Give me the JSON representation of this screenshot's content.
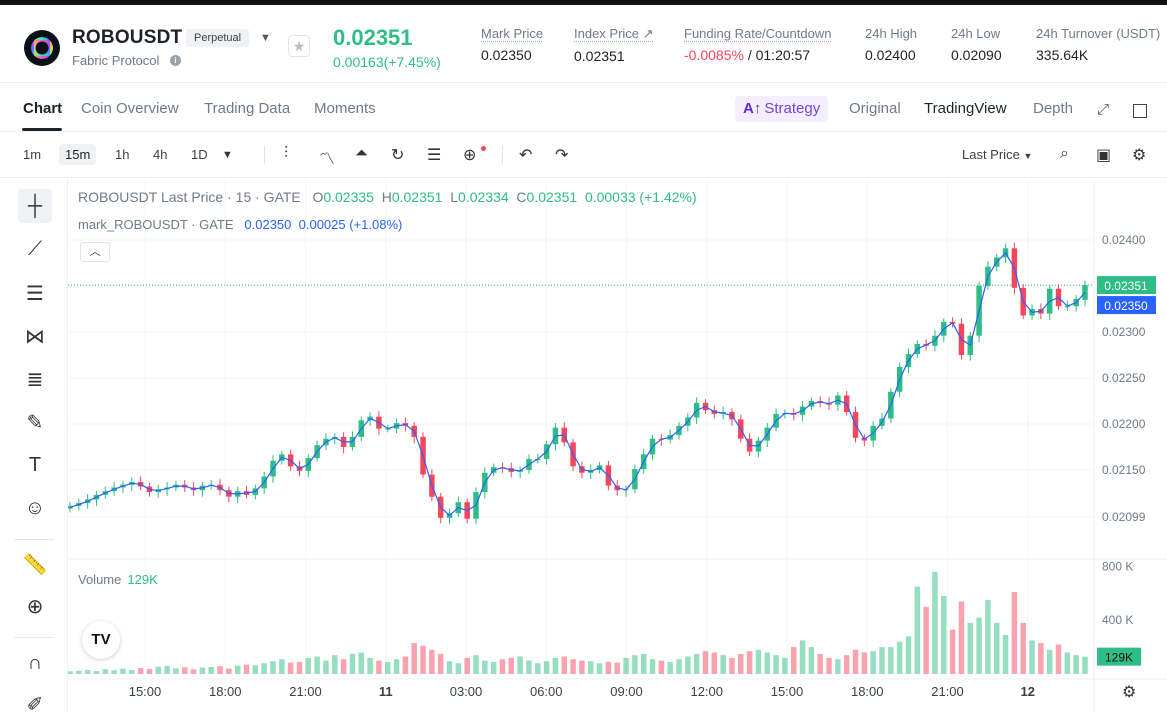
{
  "header": {
    "symbol": "ROBOUSDT",
    "badge": "Perpetual",
    "subname": "Fabric Protocol",
    "price": "0.02351",
    "change": "0.00163(+7.45%)",
    "stats": [
      {
        "label": "Mark Price",
        "value": "0.02350"
      },
      {
        "label": "Index Price ↗",
        "value": "0.02351"
      },
      {
        "label": "Funding Rate/Countdown",
        "value_neg": "-0.0085%",
        "value": " / 01:20:57"
      },
      {
        "label": "24h High",
        "value": "0.02400"
      },
      {
        "label": "24h Low",
        "value": "0.02090"
      },
      {
        "label": "24h Turnover (USDT)",
        "value": "335.64K"
      }
    ]
  },
  "tabs": {
    "items": [
      "Chart",
      "Coin Overview",
      "Trading Data",
      "Moments"
    ],
    "strategy_prefix": "A↑",
    "strategy": "Strategy",
    "views": [
      "Original",
      "TradingView",
      "Depth"
    ]
  },
  "toolbar": {
    "timeframes": [
      "1m",
      "15m",
      "1h",
      "4h",
      "1D"
    ],
    "price_type": "Last Price"
  },
  "legend": {
    "title": "ROBOUSDT Last Price · 15 · GATE",
    "o_label": "O",
    "o": "0.02335",
    "h_label": "H",
    "h": "0.02351",
    "l_label": "L",
    "l": "0.02334",
    "c_label": "C",
    "c": "0.02351",
    "chg": "0.00033 (+1.42%)",
    "mark_title": "mark_ROBOUSDT · GATE",
    "mark_value": "0.02350",
    "mark_chg": "0.00025 (+1.08%)",
    "volume_label": "Volume",
    "volume_value": "129K"
  },
  "chart_data": {
    "type": "candlestick",
    "price_axis_ticks": [
      "0.02400",
      "0.02350",
      "0.02300",
      "0.02250",
      "0.02200",
      "0.02150",
      "0.02099"
    ],
    "price_tick_values": [
      0.024,
      0.0235,
      0.023,
      0.0225,
      0.022,
      0.0215,
      0.02099
    ],
    "last_price_label": "0.02351",
    "mark_price_label": "0.02350",
    "volume_axis_ticks": [
      "800 K",
      "400 K"
    ],
    "volume_tick_values": [
      800,
      400
    ],
    "volume_last_label": "129K",
    "time_ticks": [
      "15:00",
      "18:00",
      "21:00",
      "11",
      "03:00",
      "06:00",
      "09:00",
      "12:00",
      "15:00",
      "18:00",
      "21:00",
      "12"
    ],
    "closes": [
      0.02111,
      0.02114,
      0.02118,
      0.02123,
      0.02127,
      0.02131,
      0.02134,
      0.02137,
      0.02132,
      0.02126,
      0.02129,
      0.02131,
      0.02134,
      0.02131,
      0.02128,
      0.02133,
      0.02134,
      0.02128,
      0.02121,
      0.02127,
      0.02123,
      0.0213,
      0.02143,
      0.0216,
      0.02167,
      0.02154,
      0.02149,
      0.02163,
      0.02177,
      0.02184,
      0.02186,
      0.02175,
      0.02186,
      0.02204,
      0.02208,
      0.02195,
      0.02195,
      0.02201,
      0.02198,
      0.02186,
      0.02145,
      0.02121,
      0.02098,
      0.02103,
      0.02115,
      0.02097,
      0.02126,
      0.02147,
      0.02153,
      0.02152,
      0.02148,
      0.0215,
      0.02162,
      0.02162,
      0.02178,
      0.02196,
      0.0218,
      0.02154,
      0.02147,
      0.0215,
      0.02155,
      0.02133,
      0.02128,
      0.02129,
      0.02151,
      0.02167,
      0.02184,
      0.02183,
      0.02188,
      0.02198,
      0.02207,
      0.02223,
      0.02215,
      0.02211,
      0.02213,
      0.02205,
      0.02184,
      0.0217,
      0.02182,
      0.02196,
      0.02211,
      0.02212,
      0.0221,
      0.02219,
      0.02225,
      0.02223,
      0.02221,
      0.02231,
      0.02213,
      0.02185,
      0.02182,
      0.02198,
      0.02206,
      0.02235,
      0.02262,
      0.02276,
      0.02287,
      0.02285,
      0.02296,
      0.02311,
      0.02309,
      0.02275,
      0.02296,
      0.0235,
      0.02371,
      0.02381,
      0.02391,
      0.02348,
      0.02318,
      0.02325,
      0.0232,
      0.02347,
      0.02328,
      0.02328,
      0.02336,
      0.02351
    ],
    "opens": [
      0.02108,
      0.02111,
      0.02114,
      0.02118,
      0.02123,
      0.02127,
      0.02131,
      0.02134,
      0.02137,
      0.02132,
      0.02126,
      0.02129,
      0.02131,
      0.02134,
      0.02131,
      0.02128,
      0.02133,
      0.02134,
      0.02128,
      0.02121,
      0.02127,
      0.02123,
      0.0213,
      0.02143,
      0.0216,
      0.02167,
      0.02154,
      0.02149,
      0.02163,
      0.02177,
      0.02184,
      0.02186,
      0.02175,
      0.02186,
      0.02204,
      0.02208,
      0.02195,
      0.02195,
      0.02201,
      0.02198,
      0.02186,
      0.02145,
      0.02121,
      0.02098,
      0.02103,
      0.02115,
      0.02097,
      0.02126,
      0.02147,
      0.02153,
      0.02152,
      0.02148,
      0.0215,
      0.02162,
      0.02162,
      0.02178,
      0.02196,
      0.0218,
      0.02154,
      0.02147,
      0.0215,
      0.02155,
      0.02133,
      0.02128,
      0.02129,
      0.02151,
      0.02167,
      0.02184,
      0.02183,
      0.02188,
      0.02198,
      0.02207,
      0.02223,
      0.02215,
      0.02211,
      0.02213,
      0.02205,
      0.02184,
      0.0217,
      0.02182,
      0.02196,
      0.02211,
      0.02212,
      0.0221,
      0.02219,
      0.02225,
      0.02223,
      0.02221,
      0.02231,
      0.02213,
      0.02185,
      0.02182,
      0.02198,
      0.02206,
      0.02235,
      0.02262,
      0.02276,
      0.02287,
      0.02285,
      0.02296,
      0.02311,
      0.02309,
      0.02275,
      0.02296,
      0.0235,
      0.02371,
      0.02381,
      0.02391,
      0.02348,
      0.02318,
      0.02325,
      0.0232,
      0.02347,
      0.02328,
      0.02328,
      0.02335
    ],
    "volumes": [
      20,
      25,
      30,
      22,
      35,
      28,
      40,
      30,
      45,
      38,
      55,
      60,
      42,
      50,
      35,
      48,
      52,
      58,
      40,
      62,
      70,
      65,
      80,
      95,
      110,
      85,
      90,
      120,
      130,
      100,
      140,
      110,
      150,
      160,
      120,
      100,
      90,
      110,
      130,
      230,
      210,
      180,
      150,
      95,
      80,
      120,
      140,
      100,
      90,
      110,
      120,
      130,
      100,
      80,
      95,
      120,
      130,
      110,
      100,
      95,
      80,
      90,
      85,
      120,
      140,
      150,
      110,
      100,
      90,
      110,
      130,
      150,
      170,
      160,
      140,
      120,
      150,
      170,
      180,
      160,
      140,
      120,
      200,
      250,
      200,
      150,
      120,
      110,
      140,
      180,
      160,
      170,
      200,
      200,
      240,
      280,
      650,
      500,
      760,
      580,
      330,
      540,
      380,
      420,
      550,
      380,
      290,
      610,
      380,
      250,
      230,
      180,
      220,
      160,
      140,
      129
    ]
  }
}
